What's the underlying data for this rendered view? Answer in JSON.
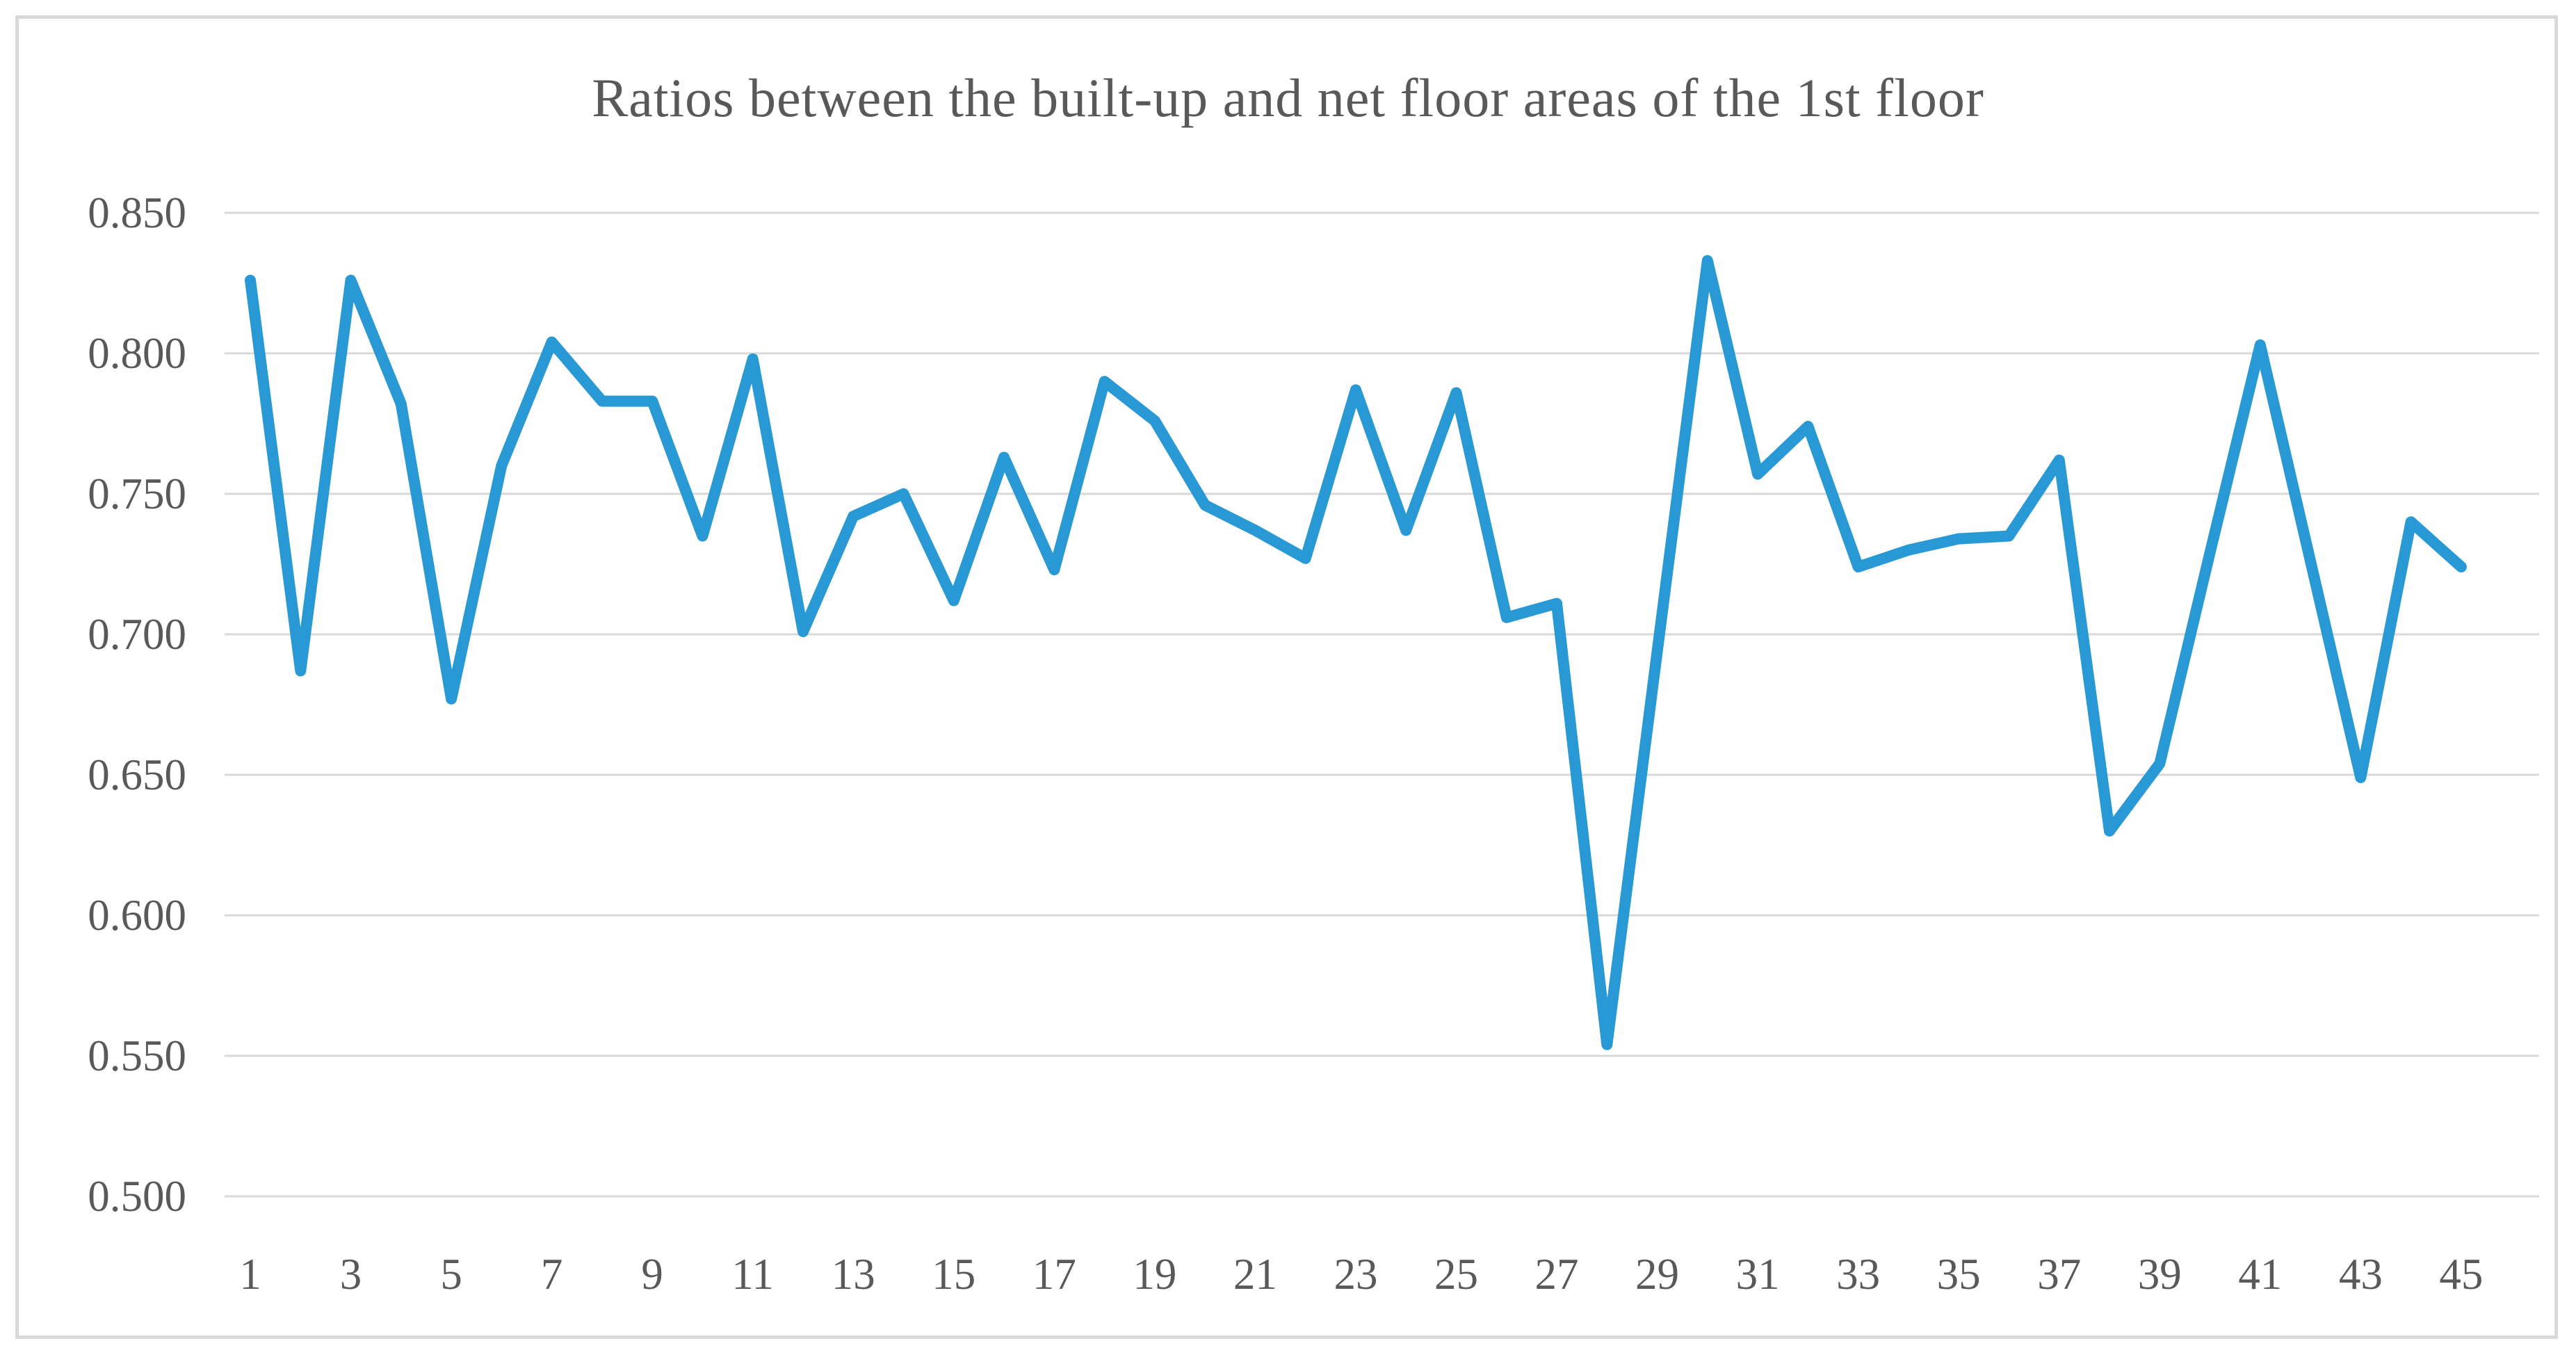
{
  "chart_data": {
    "type": "line",
    "title": "Ratios between the built-up and net floor areas of the 1st floor",
    "xlabel": "",
    "ylabel": "",
    "n_points": 45,
    "x_tick_labels": [
      "1",
      "3",
      "5",
      "7",
      "9",
      "11",
      "13",
      "15",
      "17",
      "19",
      "21",
      "23",
      "25",
      "27",
      "29",
      "31",
      "33",
      "35",
      "37",
      "39",
      "41",
      "43",
      "45"
    ],
    "y_tick_labels": [
      "0.500",
      "0.550",
      "0.600",
      "0.650",
      "0.700",
      "0.750",
      "0.800",
      "0.850"
    ],
    "ylim": [
      0.5,
      0.85
    ],
    "grid": "horizontal",
    "legend": "none",
    "series": [
      {
        "values": [
          0.826,
          0.687,
          0.826,
          0.782,
          0.677,
          0.76,
          0.804,
          0.783,
          0.783,
          0.735,
          0.798,
          0.701,
          0.742,
          0.75,
          0.712,
          0.763,
          0.723,
          0.79,
          0.776,
          0.746,
          0.737,
          0.727,
          0.787,
          0.737,
          0.786,
          0.706,
          0.711,
          0.554,
          0.694,
          0.833,
          0.757,
          0.774,
          0.724,
          0.73,
          0.734,
          0.735,
          0.762,
          0.63,
          0.654,
          0.729,
          0.803,
          0.726,
          0.649,
          0.74,
          0.724
        ]
      }
    ]
  },
  "colors": {
    "line": "#2899d5",
    "grid": "#d9d9d9",
    "text": "#595959",
    "frame_border": "#d9d9d9",
    "background": "#ffffff"
  }
}
